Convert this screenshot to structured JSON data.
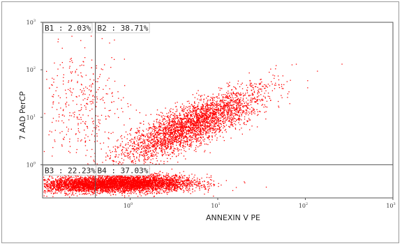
{
  "chart_data": {
    "type": "scatter",
    "xlabel": "ANNEXIN V PE",
    "ylabel": "7 AAD PerCP",
    "x_scale": "log",
    "y_scale": "log",
    "xlim": [
      0.1,
      1000
    ],
    "ylim": [
      0.2,
      1000
    ],
    "x_ticks": [
      {
        "base": "10",
        "exp": "0",
        "value": 1
      },
      {
        "base": "10",
        "exp": "1",
        "value": 10
      },
      {
        "base": "10",
        "exp": "2",
        "value": 100
      },
      {
        "base": "10",
        "exp": "3",
        "value": 1000
      }
    ],
    "y_ticks": [
      {
        "base": "10",
        "exp": "0",
        "value": 1
      },
      {
        "base": "10",
        "exp": "1",
        "value": 10
      },
      {
        "base": "10",
        "exp": "2",
        "value": 100
      },
      {
        "base": "10",
        "exp": "3",
        "value": 1000
      }
    ],
    "gates": {
      "x": 0.4,
      "y": 1.0
    },
    "quadrants": [
      {
        "id": "B1",
        "label": "B1 : 2.03%",
        "percent": 2.03
      },
      {
        "id": "B2",
        "label": "B2 : 38.71%",
        "percent": 38.71
      },
      {
        "id": "B3",
        "label": "B3 : 22.23%",
        "percent": 22.23
      },
      {
        "id": "B4",
        "label": "B4 : 37.03%",
        "percent": 37.03
      }
    ],
    "point_color": "#ff0000",
    "populations": [
      {
        "x_log_center": -0.55,
        "y_log_center": -0.42,
        "x_log_sd": 0.32,
        "y_log_sd": 0.08,
        "weight": 0.22
      },
      {
        "x_log_center": 0.05,
        "y_log_center": -0.38,
        "x_log_sd": 0.35,
        "y_log_sd": 0.09,
        "weight": 0.37
      },
      {
        "x_log_center": 0.7,
        "y_log_center": 0.85,
        "x_log_sd": 0.4,
        "y_log_sd": 0.33,
        "weight": 0.37
      },
      {
        "x_log_center": -0.55,
        "y_log_center": 1.3,
        "x_log_sd": 0.25,
        "y_log_sd": 0.55,
        "weight": 0.04
      }
    ]
  }
}
